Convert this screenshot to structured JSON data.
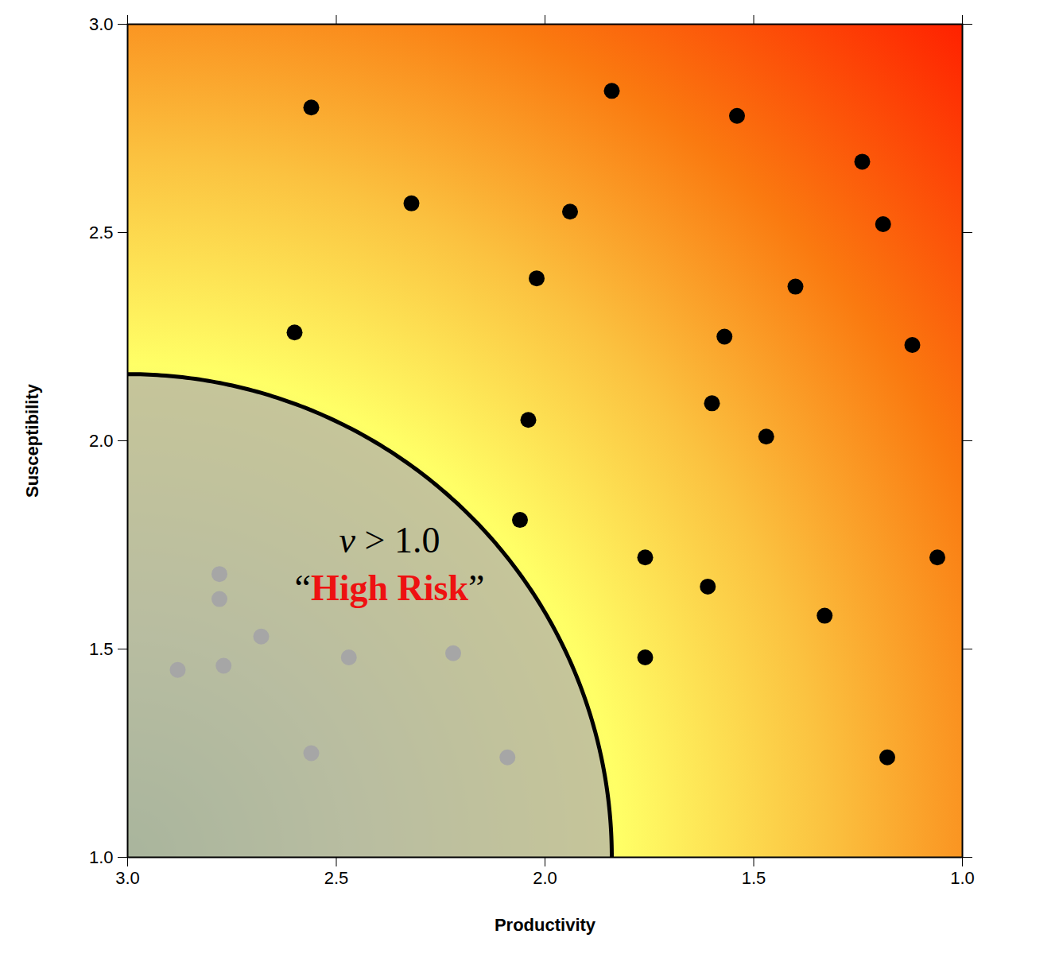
{
  "chart_data": {
    "type": "scatter",
    "x_label": "Productivity",
    "y_label": "Susceptibility",
    "xlim": [
      3.0,
      1.0
    ],
    "ylim": [
      1.0,
      3.0
    ],
    "xticks": [
      {
        "value": 3.0,
        "label": "3.0"
      },
      {
        "value": 2.5,
        "label": "2.5"
      },
      {
        "value": 2.0,
        "label": "2.0"
      },
      {
        "value": 1.5,
        "label": "1.5"
      },
      {
        "value": 1.0,
        "label": "1.0"
      }
    ],
    "yticks": [
      {
        "value": 1.0,
        "label": "1.0"
      },
      {
        "value": 1.5,
        "label": "1.5"
      },
      {
        "value": 2.0,
        "label": "2.0"
      },
      {
        "value": 2.5,
        "label": "2.5"
      },
      {
        "value": 3.0,
        "label": "3.0"
      }
    ],
    "grid": false,
    "boundary_radius": 1.16,
    "annotation_lines": [
      "v > 1.0",
      "“High Risk”"
    ],
    "series": [
      {
        "color": "#000000",
        "marker": "circle",
        "x": [
          2.56,
          1.84,
          1.54,
          1.24,
          2.32,
          1.94,
          1.19,
          2.02,
          1.4,
          2.6,
          1.57,
          1.12,
          1.6,
          2.04,
          1.47,
          2.06,
          1.76,
          1.06,
          1.61,
          1.33,
          1.76,
          1.18
        ],
        "y": [
          2.8,
          2.84,
          2.78,
          2.67,
          2.57,
          2.55,
          2.52,
          2.39,
          2.37,
          2.26,
          2.25,
          2.23,
          2.09,
          2.05,
          2.01,
          1.81,
          1.72,
          1.72,
          1.65,
          1.58,
          1.48,
          1.24
        ]
      },
      {
        "color": "#a6a6a6",
        "marker": "circle",
        "x": [
          2.78,
          2.78,
          2.68,
          2.88,
          2.77,
          2.47,
          2.22,
          2.56,
          2.09
        ],
        "y": [
          1.68,
          1.62,
          1.53,
          1.45,
          1.46,
          1.48,
          1.49,
          1.25,
          1.24
        ]
      }
    ]
  }
}
